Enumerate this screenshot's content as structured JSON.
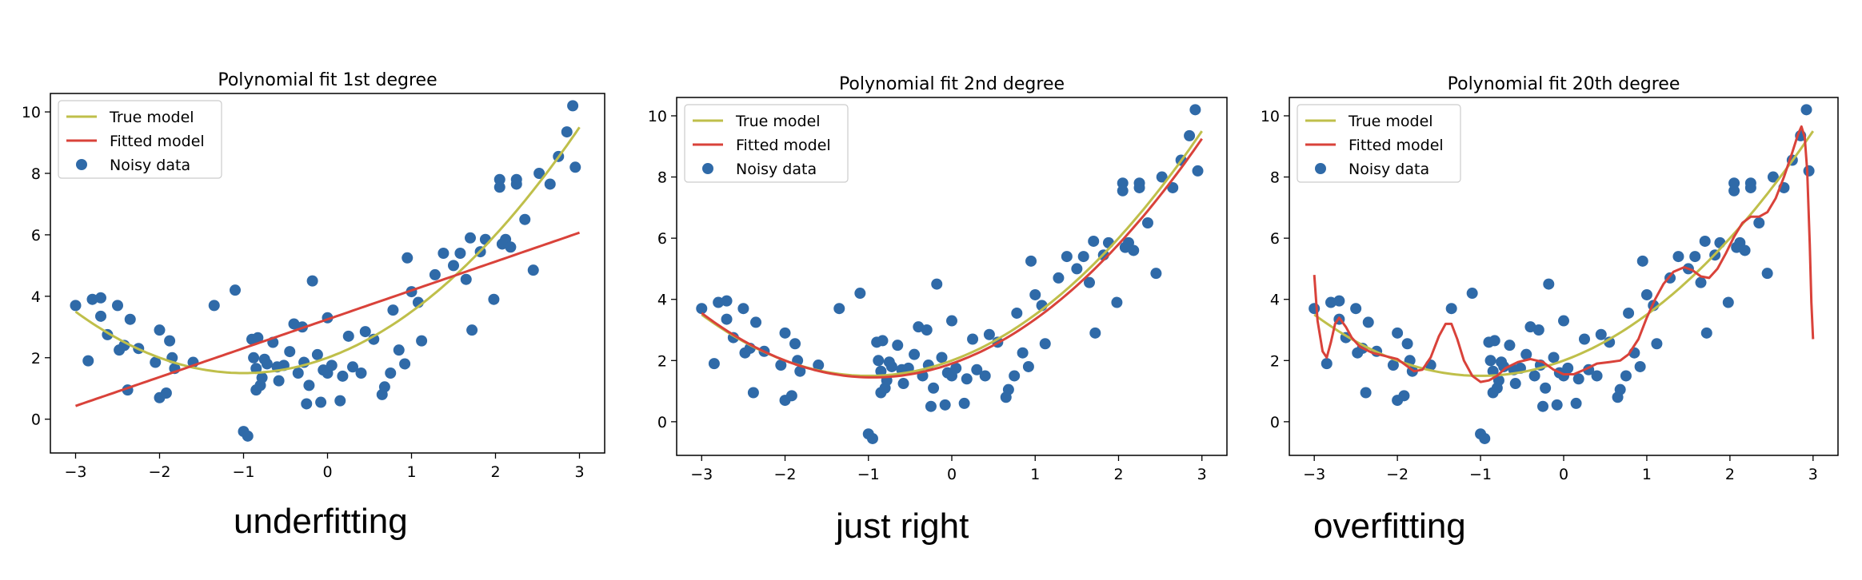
{
  "colors": {
    "true_model": "#bfbf4a",
    "fitted_model": "#d9423a",
    "noisy_data": "#2f6aa8",
    "axes": "#000000"
  },
  "captions": [
    "underfitting",
    "just right",
    "overfitting"
  ],
  "noisy_points": [
    [
      -3.0,
      3.7
    ],
    [
      -2.85,
      1.9
    ],
    [
      -2.8,
      3.9
    ],
    [
      -2.7,
      3.95
    ],
    [
      -2.7,
      3.35
    ],
    [
      -2.62,
      2.75
    ],
    [
      -2.5,
      3.7
    ],
    [
      -2.48,
      2.25
    ],
    [
      -2.42,
      2.4
    ],
    [
      -2.38,
      0.95
    ],
    [
      -2.35,
      3.25
    ],
    [
      -2.25,
      2.3
    ],
    [
      -2.05,
      1.85
    ],
    [
      -2.0,
      2.9
    ],
    [
      -2.0,
      0.7
    ],
    [
      -1.92,
      0.85
    ],
    [
      -1.88,
      2.55
    ],
    [
      -1.85,
      2.0
    ],
    [
      -1.82,
      1.65
    ],
    [
      -1.6,
      1.85
    ],
    [
      -1.35,
      3.7
    ],
    [
      -1.1,
      4.2
    ],
    [
      -1.0,
      -0.4
    ],
    [
      -0.95,
      -0.55
    ],
    [
      -0.9,
      2.6
    ],
    [
      -0.88,
      2.0
    ],
    [
      -0.85,
      0.95
    ],
    [
      -0.85,
      1.65
    ],
    [
      -0.83,
      2.65
    ],
    [
      -0.8,
      1.1
    ],
    [
      -0.78,
      1.35
    ],
    [
      -0.75,
      1.95
    ],
    [
      -0.72,
      1.8
    ],
    [
      -0.65,
      2.5
    ],
    [
      -0.6,
      1.7
    ],
    [
      -0.58,
      1.25
    ],
    [
      -0.52,
      1.75
    ],
    [
      -0.45,
      2.2
    ],
    [
      -0.4,
      3.1
    ],
    [
      -0.35,
      1.5
    ],
    [
      -0.3,
      3.0
    ],
    [
      -0.28,
      1.85
    ],
    [
      -0.25,
      0.5
    ],
    [
      -0.22,
      1.1
    ],
    [
      -0.18,
      4.5
    ],
    [
      -0.12,
      2.1
    ],
    [
      -0.08,
      0.55
    ],
    [
      -0.05,
      1.6
    ],
    [
      0.0,
      3.3
    ],
    [
      0.0,
      1.5
    ],
    [
      0.05,
      1.75
    ],
    [
      0.15,
      0.6
    ],
    [
      0.18,
      1.4
    ],
    [
      0.25,
      2.7
    ],
    [
      0.3,
      1.7
    ],
    [
      0.4,
      1.5
    ],
    [
      0.45,
      2.85
    ],
    [
      0.55,
      2.6
    ],
    [
      0.65,
      0.8
    ],
    [
      0.68,
      1.05
    ],
    [
      0.75,
      1.5
    ],
    [
      0.78,
      3.55
    ],
    [
      0.85,
      2.25
    ],
    [
      0.92,
      1.8
    ],
    [
      0.95,
      5.25
    ],
    [
      1.0,
      4.15
    ],
    [
      1.08,
      3.8
    ],
    [
      1.12,
      2.55
    ],
    [
      1.28,
      4.7
    ],
    [
      1.38,
      5.4
    ],
    [
      1.5,
      5.0
    ],
    [
      1.58,
      5.4
    ],
    [
      1.65,
      4.55
    ],
    [
      1.7,
      5.9
    ],
    [
      1.72,
      2.9
    ],
    [
      1.82,
      5.45
    ],
    [
      1.88,
      5.85
    ],
    [
      1.98,
      3.9
    ],
    [
      2.05,
      7.8
    ],
    [
      2.05,
      7.55
    ],
    [
      2.08,
      5.7
    ],
    [
      2.12,
      5.85
    ],
    [
      2.18,
      5.6
    ],
    [
      2.25,
      7.8
    ],
    [
      2.25,
      7.65
    ],
    [
      2.35,
      6.5
    ],
    [
      2.45,
      4.85
    ],
    [
      2.52,
      8.0
    ],
    [
      2.65,
      7.65
    ],
    [
      2.75,
      8.55
    ],
    [
      2.85,
      9.35
    ],
    [
      2.92,
      10.2
    ],
    [
      2.95,
      8.2
    ]
  ],
  "chart_data": [
    {
      "type": "scatter",
      "title": "Polynomial fit 1st degree",
      "xlim": [
        -3.3,
        3.3
      ],
      "ylim": [
        -1.1,
        10.6
      ],
      "xticks": [
        -3,
        -2,
        -1,
        0,
        1,
        2,
        3
      ],
      "yticks": [
        0,
        2,
        4,
        6,
        8,
        10
      ],
      "legend": {
        "position": "upper-left",
        "entries": [
          "True model",
          "Fitted model",
          "Noisy data"
        ]
      },
      "true_model": {
        "name": "True model",
        "coefficients": [
          2.0,
          1.0,
          0.5
        ]
      },
      "fitted_model": {
        "name": "Fitted model",
        "coefficients": [
          3.25,
          0.94
        ]
      },
      "noisy_data": {
        "name": "Noisy data",
        "source": "noisy_points"
      }
    },
    {
      "type": "scatter",
      "title": "Polynomial fit 2nd degree",
      "xlim": [
        -3.3,
        3.3
      ],
      "ylim": [
        -1.1,
        10.6
      ],
      "xticks": [
        -3,
        -2,
        -1,
        0,
        1,
        2,
        3
      ],
      "yticks": [
        0,
        2,
        4,
        6,
        8,
        10
      ],
      "legend": {
        "position": "upper-left",
        "entries": [
          "True model",
          "Fitted model",
          "Noisy data"
        ]
      },
      "true_model": {
        "name": "True model",
        "coefficients": [
          2.0,
          1.0,
          0.5
        ]
      },
      "fitted_model": {
        "name": "Fitted model",
        "coefficients": [
          1.9,
          0.95,
          0.5
        ]
      },
      "noisy_data": {
        "name": "Noisy data",
        "source": "noisy_points"
      }
    },
    {
      "type": "scatter",
      "title": "Polynomial fit 20th degree",
      "xlim": [
        -3.3,
        3.3
      ],
      "ylim": [
        -1.1,
        10.6
      ],
      "xticks": [
        -3,
        -2,
        -1,
        0,
        1,
        2,
        3
      ],
      "yticks": [
        0,
        2,
        4,
        6,
        8,
        10
      ],
      "legend": {
        "position": "upper-left",
        "entries": [
          "True model",
          "Fitted model",
          "Noisy data"
        ]
      },
      "true_model": {
        "name": "True model",
        "coefficients": [
          2.0,
          1.0,
          0.5
        ]
      },
      "fitted_model": {
        "name": "Fitted model",
        "points": [
          [
            -3.0,
            4.8
          ],
          [
            -2.96,
            3.3
          ],
          [
            -2.9,
            2.3
          ],
          [
            -2.85,
            2.1
          ],
          [
            -2.8,
            2.6
          ],
          [
            -2.75,
            3.2
          ],
          [
            -2.7,
            3.4
          ],
          [
            -2.62,
            3.1
          ],
          [
            -2.55,
            2.75
          ],
          [
            -2.45,
            2.45
          ],
          [
            -2.3,
            2.25
          ],
          [
            -2.15,
            2.15
          ],
          [
            -2.0,
            2.05
          ],
          [
            -1.9,
            1.85
          ],
          [
            -1.8,
            1.65
          ],
          [
            -1.7,
            1.7
          ],
          [
            -1.6,
            2.1
          ],
          [
            -1.5,
            2.8
          ],
          [
            -1.42,
            3.2
          ],
          [
            -1.35,
            3.2
          ],
          [
            -1.28,
            2.7
          ],
          [
            -1.2,
            2.0
          ],
          [
            -1.1,
            1.5
          ],
          [
            -1.0,
            1.3
          ],
          [
            -0.9,
            1.35
          ],
          [
            -0.8,
            1.5
          ],
          [
            -0.7,
            1.75
          ],
          [
            -0.55,
            1.95
          ],
          [
            -0.4,
            2.05
          ],
          [
            -0.25,
            1.95
          ],
          [
            -0.12,
            1.7
          ],
          [
            0.0,
            1.55
          ],
          [
            0.12,
            1.55
          ],
          [
            0.25,
            1.7
          ],
          [
            0.4,
            1.9
          ],
          [
            0.55,
            1.95
          ],
          [
            0.68,
            2.0
          ],
          [
            0.78,
            2.2
          ],
          [
            0.9,
            2.7
          ],
          [
            1.0,
            3.4
          ],
          [
            1.1,
            4.0
          ],
          [
            1.2,
            4.5
          ],
          [
            1.32,
            4.9
          ],
          [
            1.45,
            5.05
          ],
          [
            1.55,
            4.95
          ],
          [
            1.65,
            4.75
          ],
          [
            1.75,
            4.7
          ],
          [
            1.85,
            5.0
          ],
          [
            1.95,
            5.5
          ],
          [
            2.05,
            6.05
          ],
          [
            2.15,
            6.5
          ],
          [
            2.25,
            6.7
          ],
          [
            2.35,
            6.7
          ],
          [
            2.45,
            6.85
          ],
          [
            2.55,
            7.3
          ],
          [
            2.65,
            8.0
          ],
          [
            2.75,
            8.8
          ],
          [
            2.82,
            9.4
          ],
          [
            2.86,
            9.65
          ],
          [
            2.9,
            9.3
          ],
          [
            2.93,
            8.2
          ],
          [
            2.96,
            5.8
          ],
          [
            2.98,
            3.9
          ],
          [
            3.0,
            2.7
          ]
        ]
      },
      "noisy_data": {
        "name": "Noisy data",
        "source": "noisy_points"
      }
    }
  ]
}
